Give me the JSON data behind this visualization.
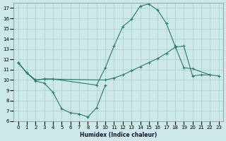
{
  "xlabel": "Humidex (Indice chaleur)",
  "bg_color": "#cce8e8",
  "grid_color": "#aacccc",
  "line_color": "#2a7a6a",
  "xlim": [
    -0.5,
    23.5
  ],
  "ylim": [
    6,
    17.5
  ],
  "xticks": [
    0,
    1,
    2,
    3,
    4,
    5,
    6,
    7,
    8,
    9,
    10,
    11,
    12,
    13,
    14,
    15,
    16,
    17,
    18,
    19,
    20,
    21,
    22,
    23
  ],
  "yticks": [
    6,
    7,
    8,
    9,
    10,
    11,
    12,
    13,
    14,
    15,
    16,
    17
  ],
  "line1_x": [
    0,
    1,
    2,
    3,
    4,
    5,
    6,
    7,
    8,
    9,
    10
  ],
  "line1_y": [
    11.7,
    10.7,
    9.9,
    9.7,
    8.8,
    7.2,
    6.8,
    6.7,
    6.4,
    7.3,
    9.5
  ],
  "line2_x": [
    0,
    1,
    2,
    3,
    4,
    9,
    10,
    11,
    12,
    13,
    14,
    15,
    16,
    17,
    18,
    19,
    20,
    22
  ],
  "line2_y": [
    11.7,
    10.7,
    10.0,
    10.1,
    10.1,
    9.5,
    11.2,
    13.3,
    15.2,
    15.9,
    17.2,
    17.4,
    16.8,
    15.5,
    13.3,
    11.2,
    11.1,
    10.5
  ],
  "line3_x": [
    0,
    1,
    2,
    3,
    10,
    11,
    12,
    13,
    14,
    15,
    16,
    17,
    18,
    19,
    20,
    21,
    22,
    23
  ],
  "line3_y": [
    11.7,
    10.7,
    10.0,
    10.1,
    10.0,
    10.2,
    10.5,
    10.9,
    11.3,
    11.7,
    12.1,
    12.6,
    13.2,
    13.3,
    10.4,
    10.5,
    10.5,
    10.4
  ]
}
